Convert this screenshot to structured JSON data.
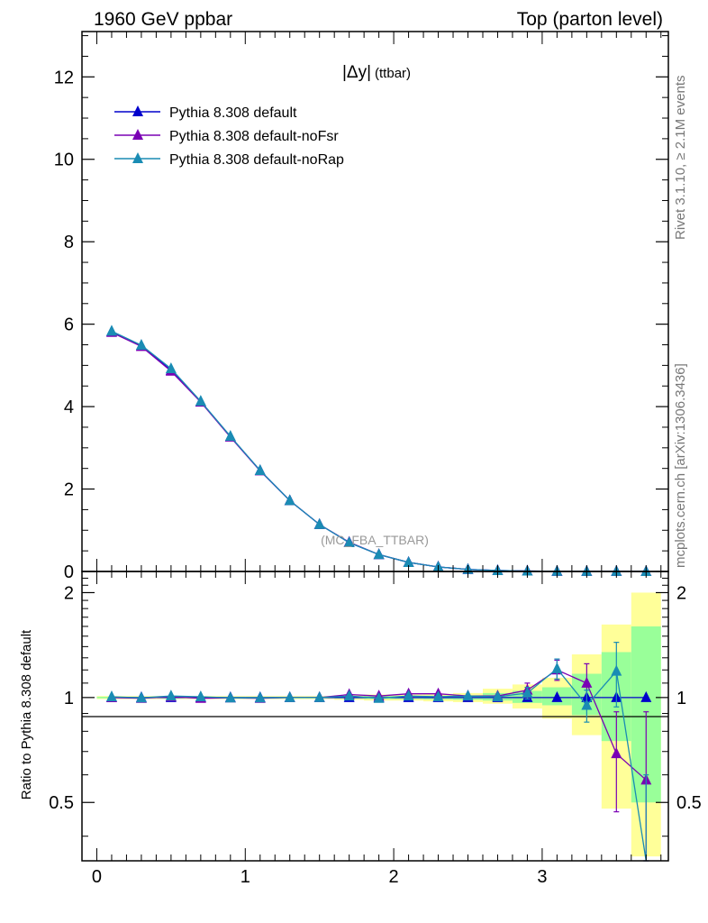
{
  "header": {
    "left": "1960 GeV ppbar",
    "right": "Top (parton level)"
  },
  "side": {
    "rivet": "Rivet 3.1.10, ≥ 2.1M events",
    "mcplots": "mcplots.cern.ch [arXiv:1306.3436]"
  },
  "plot": {
    "title": "|Δy|",
    "title_suffix": "(ttbar)",
    "watermark": "(MC_FBA_TTBAR)",
    "ratio_ylabel": "Ratio to Pythia 8.308 default"
  },
  "colors": {
    "default": "#0000cc",
    "noFsr": "#7a00b4",
    "noRap": "#1a8cb4",
    "band_yellow": "#ffff99",
    "band_green": "#99ff99"
  },
  "chart_data": {
    "type": "line",
    "main": {
      "xlim": [
        -0.1,
        3.85
      ],
      "ylim": [
        0,
        13.1
      ],
      "x_ticks": [
        0,
        1,
        2,
        3
      ],
      "y_ticks": [
        0,
        2,
        4,
        6,
        8,
        10,
        12
      ],
      "legend_position": "top-left"
    },
    "ratio": {
      "ylim": [
        0.34,
        2.3
      ],
      "y_ticks": [
        0.5,
        1,
        2
      ],
      "y_tick_labels": [
        "0.5",
        "1",
        "2"
      ],
      "x_ticks": [
        0,
        1,
        2,
        3
      ]
    },
    "x": [
      0.1,
      0.3,
      0.5,
      0.7,
      0.9,
      1.1,
      1.3,
      1.5,
      1.7,
      1.9,
      2.1,
      2.3,
      2.5,
      2.7,
      2.9,
      3.1,
      3.3,
      3.5,
      3.7
    ],
    "series": [
      {
        "name": "Pythia 8.308 default",
        "color_key": "default",
        "values": [
          5.82,
          5.48,
          4.88,
          4.12,
          3.27,
          2.45,
          1.72,
          1.14,
          0.7,
          0.41,
          0.22,
          0.11,
          0.05,
          0.023,
          0.01,
          0.005,
          0.003,
          0.002,
          0.001
        ],
        "ratio": [
          1,
          1,
          1,
          1,
          1,
          1,
          1,
          1,
          1,
          1,
          1,
          1,
          1,
          1,
          1,
          1,
          1,
          1,
          1
        ]
      },
      {
        "name": "Pythia 8.308 default-noFsr",
        "color_key": "noFsr",
        "values": [
          5.8,
          5.46,
          4.86,
          4.11,
          3.26,
          2.44,
          1.72,
          1.14,
          0.71,
          0.41,
          0.22,
          0.11,
          0.05,
          0.023,
          0.01,
          0.005,
          0.003,
          0.002,
          0.001
        ],
        "ratio": [
          1.0,
          0.995,
          1.005,
          0.995,
          0.998,
          0.995,
          1.0,
          1.0,
          1.02,
          1.01,
          1.025,
          1.025,
          1.01,
          1.01,
          1.05,
          1.2,
          1.1,
          0.69,
          0.58
        ],
        "ratio_err": [
          0,
          0,
          0,
          0,
          0,
          0,
          0,
          0,
          0,
          0,
          0,
          0,
          0,
          0,
          0.05,
          0.08,
          0.15,
          0.22,
          0.33
        ]
      },
      {
        "name": "Pythia 8.308 default-noRap",
        "color_key": "noRap",
        "values": [
          5.83,
          5.49,
          4.92,
          4.13,
          3.28,
          2.45,
          1.72,
          1.14,
          0.7,
          0.41,
          0.22,
          0.11,
          0.05,
          0.023,
          0.01,
          0.005,
          0.003,
          0.002,
          0.001
        ],
        "ratio": [
          1.005,
          0.998,
          1.01,
          1.005,
          0.998,
          0.998,
          1.0,
          1.0,
          1.01,
          0.995,
          1.01,
          1.005,
          1.01,
          1.005,
          1.03,
          1.21,
          0.95,
          1.19,
          0.3
        ],
        "ratio_err": [
          0,
          0,
          0,
          0,
          0,
          0,
          0,
          0,
          0,
          0,
          0,
          0,
          0,
          0,
          0.04,
          0.08,
          0.1,
          0.25,
          0.3
        ]
      }
    ],
    "bands": {
      "x_edges": [
        0,
        0.2,
        0.4,
        0.6,
        0.8,
        1.0,
        1.2,
        1.4,
        1.6,
        1.8,
        2.0,
        2.2,
        2.4,
        2.6,
        2.8,
        3.0,
        3.2,
        3.4,
        3.6,
        3.8
      ],
      "yellow_lo": [
        0.99,
        0.99,
        0.99,
        0.99,
        0.99,
        0.99,
        0.99,
        0.99,
        0.985,
        0.98,
        0.98,
        0.975,
        0.97,
        0.96,
        0.93,
        0.87,
        0.78,
        0.48,
        0.35
      ],
      "yellow_hi": [
        1.01,
        1.01,
        1.01,
        1.01,
        1.01,
        1.01,
        1.01,
        1.01,
        1.015,
        1.02,
        1.02,
        1.025,
        1.03,
        1.06,
        1.09,
        1.14,
        1.33,
        1.62,
        2.0
      ],
      "green_lo": [
        0.995,
        0.995,
        0.995,
        0.995,
        0.995,
        0.995,
        0.995,
        0.995,
        0.993,
        0.99,
        0.99,
        0.988,
        0.985,
        0.98,
        0.965,
        0.95,
        0.89,
        0.75,
        0.5
      ],
      "green_hi": [
        1.005,
        1.005,
        1.005,
        1.005,
        1.005,
        1.005,
        1.005,
        1.005,
        1.007,
        1.01,
        1.01,
        1.012,
        1.015,
        1.03,
        1.045,
        1.07,
        1.17,
        1.35,
        1.6
      ]
    }
  }
}
